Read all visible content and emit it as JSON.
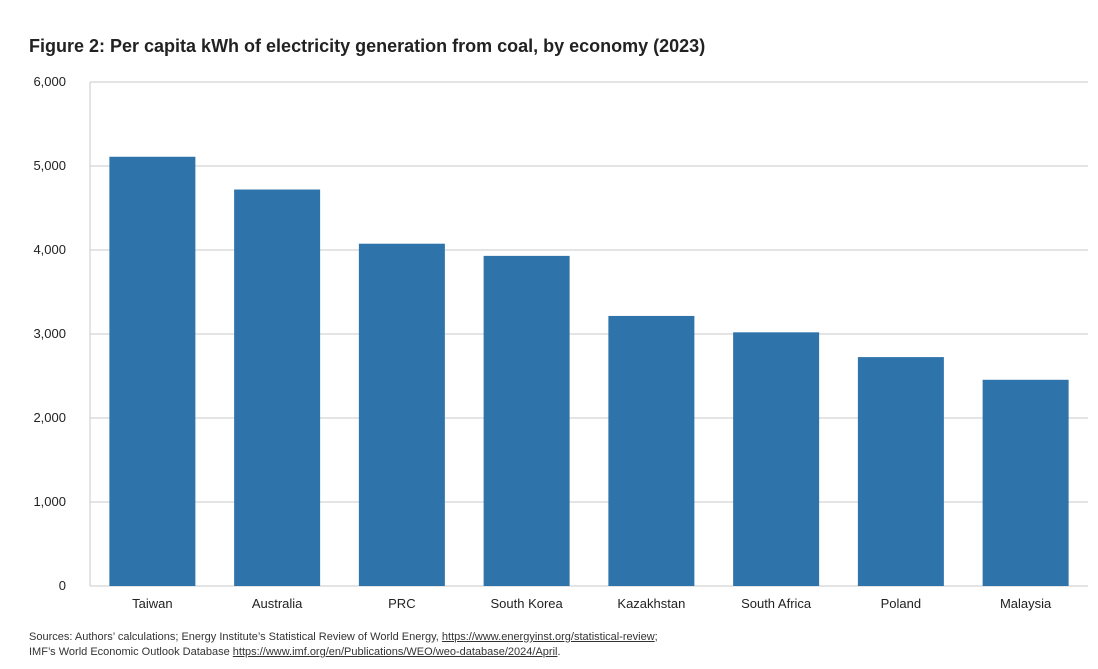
{
  "chart_data": {
    "type": "bar",
    "title": "Figure 2: Per capita kWh of electricity generation from coal, by economy (2023)",
    "categories": [
      "Taiwan",
      "Australia",
      "PRC",
      "South Korea",
      "Kazakhstan",
      "South Africa",
      "Poland",
      "Malaysia"
    ],
    "values": [
      5110,
      4720,
      4075,
      3930,
      3215,
      3020,
      2725,
      2455
    ],
    "xlabel": "",
    "ylabel": "",
    "ylim": [
      0,
      6000
    ],
    "yticks": [
      "0",
      "1,000",
      "2,000",
      "3,000",
      "4,000",
      "5,000",
      "6,000"
    ],
    "ytick_values": [
      0,
      1000,
      2000,
      3000,
      4000,
      5000,
      6000
    ],
    "grid": true,
    "bar_color": "#2e74aa",
    "grid_color": "#c8c8c8"
  },
  "sources": {
    "line1_prefix": "Sources: Authors’ calculations; Energy Institute’s Statistical Review of World Energy, ",
    "line1_link": "https://www.energyinst.org/statistical-review",
    "line1_suffix": ";",
    "line2_prefix": "IMF’s World Economic Outlook Database ",
    "line2_link": "https://www.imf.org/en/Publications/WEO/weo-database/2024/April",
    "line2_suffix": "."
  }
}
